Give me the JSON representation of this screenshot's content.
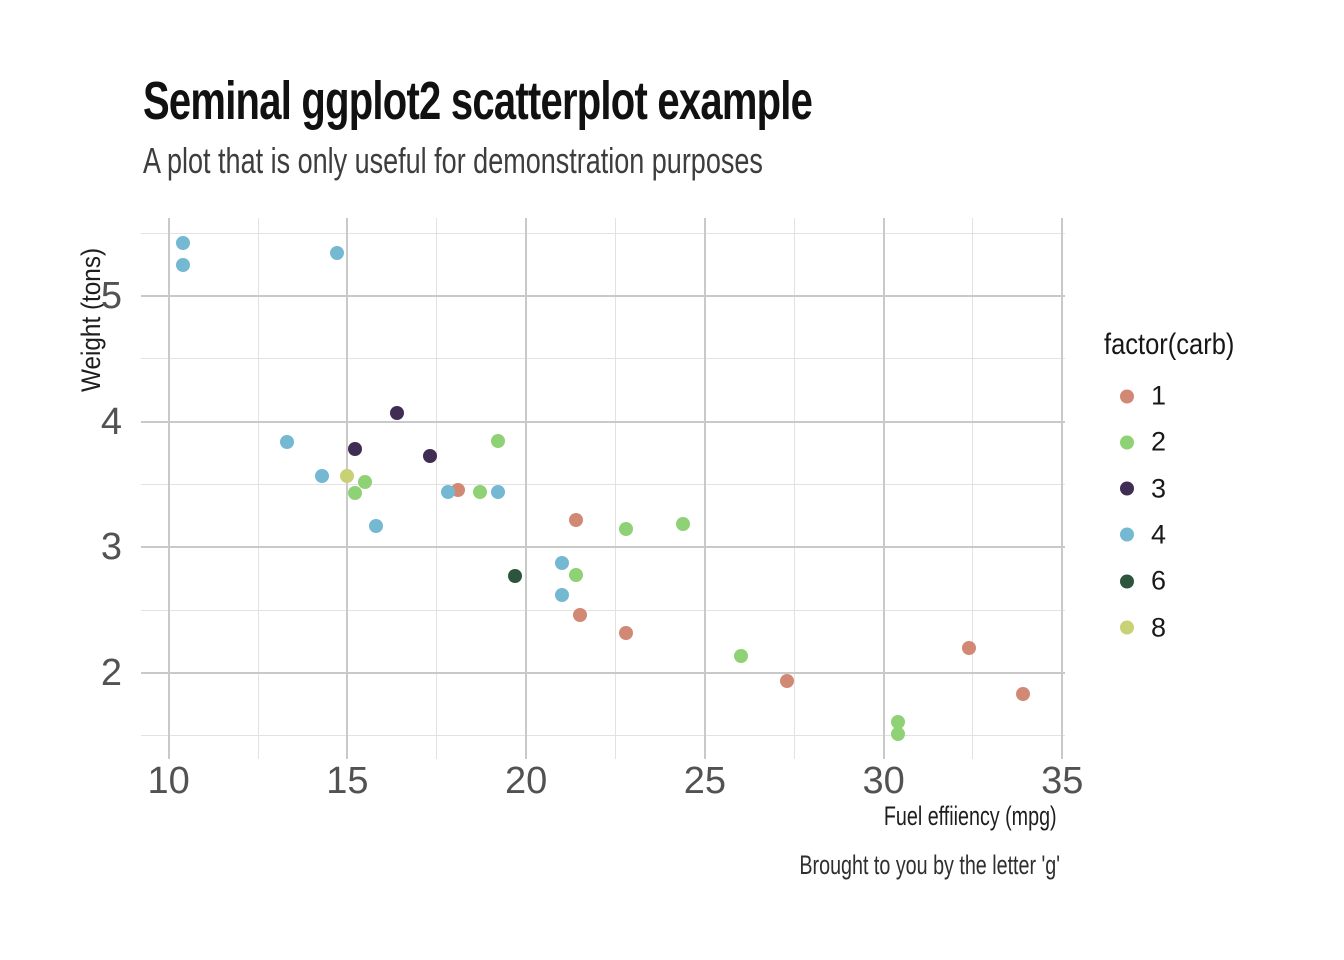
{
  "chart_data": {
    "type": "scatter",
    "title": "Seminal ggplot2 scatterplot example",
    "subtitle": "A plot that is only useful for demonstration purposes",
    "caption": "Brought to you by the letter 'g'",
    "xlabel": "Fuel effiiency (mpg)",
    "ylabel": "Weight (tons)",
    "x_ticks": [
      10,
      15,
      20,
      25,
      30,
      35
    ],
    "x_minor_gridlines": [
      12.5,
      17.5,
      22.5,
      27.5,
      32.5
    ],
    "y_ticks": [
      2,
      3,
      4,
      5
    ],
    "y_minor_gridlines": [
      1.5,
      2.5,
      3.5,
      4.5,
      5.5
    ],
    "x_range": [
      9.225,
      35.075
    ],
    "y_range": [
      1.317,
      5.62
    ],
    "grid": "on",
    "legend_position": "right",
    "legend_title": "factor(carb)",
    "series": [
      {
        "name": "1",
        "color": "#d18975",
        "points": [
          [
            22.8,
            2.32
          ],
          [
            21.4,
            3.215
          ],
          [
            18.1,
            3.46
          ],
          [
            32.4,
            2.2
          ],
          [
            33.9,
            1.835
          ],
          [
            21.5,
            2.465
          ],
          [
            27.3,
            1.935
          ]
        ]
      },
      {
        "name": "2",
        "color": "#8fd175",
        "points": [
          [
            18.7,
            3.44
          ],
          [
            24.4,
            3.19
          ],
          [
            22.8,
            3.15
          ],
          [
            15.5,
            3.52
          ],
          [
            15.2,
            3.435
          ],
          [
            19.2,
            3.845
          ],
          [
            26.0,
            2.14
          ],
          [
            30.4,
            1.513
          ],
          [
            30.4,
            1.615
          ],
          [
            21.4,
            2.78
          ]
        ]
      },
      {
        "name": "3",
        "color": "#3f2d54",
        "points": [
          [
            16.4,
            4.07
          ],
          [
            17.3,
            3.73
          ],
          [
            15.2,
            3.78
          ]
        ]
      },
      {
        "name": "4",
        "color": "#75b8d1",
        "points": [
          [
            21.0,
            2.62
          ],
          [
            21.0,
            2.875
          ],
          [
            14.3,
            3.57
          ],
          [
            19.2,
            3.44
          ],
          [
            17.8,
            3.44
          ],
          [
            10.4,
            5.25
          ],
          [
            10.4,
            5.424
          ],
          [
            14.7,
            5.345
          ],
          [
            13.3,
            3.84
          ],
          [
            15.8,
            3.17
          ]
        ]
      },
      {
        "name": "6",
        "color": "#2d543d",
        "points": [
          [
            19.7,
            2.77
          ]
        ]
      },
      {
        "name": "8",
        "color": "#c9d175",
        "points": [
          [
            15.0,
            3.57
          ]
        ]
      }
    ],
    "colors": {
      "grid_major": "#c9c9c9",
      "grid_minor": "#e2e2e2",
      "title_text": "#111111",
      "subtitle_text": "#3d3d3d",
      "tick_text": "#525252",
      "background": "#ffffff"
    }
  }
}
